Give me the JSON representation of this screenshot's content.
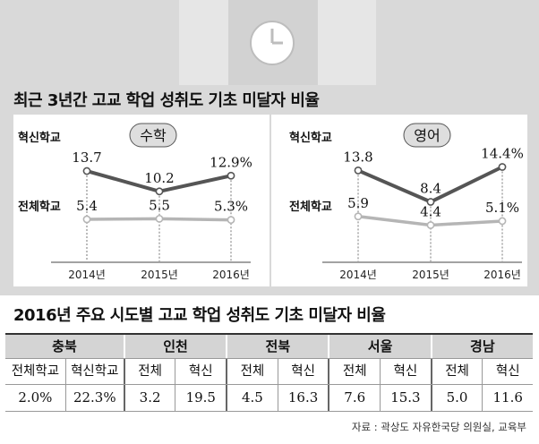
{
  "title": "최근 3년간 고교 학업 성취도 기초 미달자 비율",
  "colors": {
    "innovation": "#555555",
    "overall": "#b5b5b5",
    "panel": "#d9d9d9",
    "header_cell": "#d4d4d4"
  },
  "chart_data": [
    {
      "type": "line",
      "title": "수학",
      "x": [
        "2014년",
        "2015년",
        "2016년"
      ],
      "series": [
        {
          "name": "혁신학교",
          "values": [
            13.7,
            10.2,
            12.9
          ],
          "labels": [
            "13.7",
            "10.2",
            "12.9%"
          ]
        },
        {
          "name": "전체학교",
          "values": [
            5.4,
            5.5,
            5.3
          ],
          "labels": [
            "5.4",
            "5.5",
            "5.3%"
          ]
        }
      ]
    },
    {
      "type": "line",
      "title": "영어",
      "x": [
        "2014년",
        "2015년",
        "2016년"
      ],
      "series": [
        {
          "name": "혁신학교",
          "values": [
            13.8,
            8.4,
            14.4
          ],
          "labels": [
            "13.8",
            "8.4",
            "14.4%"
          ]
        },
        {
          "name": "전체학교",
          "values": [
            5.9,
            4.4,
            5.1
          ],
          "labels": [
            "5.9",
            "4.4",
            "5.1%"
          ]
        }
      ]
    },
    {
      "type": "table",
      "title": "2016년 주요 시도별 고교 학업 성취도 기초 미달자 비율",
      "regions": [
        "충북",
        "인천",
        "전북",
        "서울",
        "경남"
      ],
      "sub_headers": [
        [
          "전체학교",
          "혁신학교"
        ],
        [
          "전체",
          "혁신"
        ],
        [
          "전체",
          "혁신"
        ],
        [
          "전체",
          "혁신"
        ],
        [
          "전체",
          "혁신"
        ]
      ],
      "values": [
        [
          "2.0%",
          "22.3%"
        ],
        [
          "3.2",
          "19.5"
        ],
        [
          "4.5",
          "16.3"
        ],
        [
          "7.6",
          "15.3"
        ],
        [
          "5.0",
          "11.6"
        ]
      ]
    }
  ],
  "source": "자료 : 곽상도 자유한국당 의원실, 교육부"
}
